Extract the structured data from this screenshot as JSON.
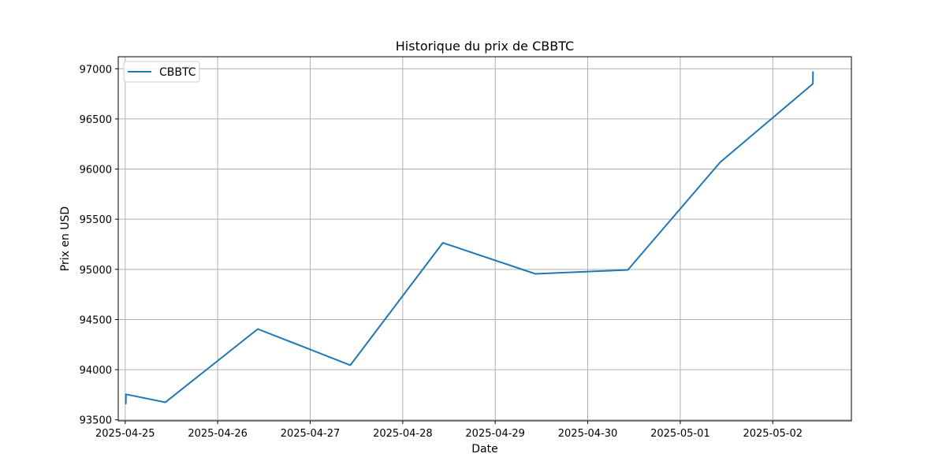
{
  "chart_data": {
    "type": "line",
    "title": "Historique du prix de CBBTC",
    "xlabel": "Date",
    "ylabel": "Prix en USD",
    "grid": true,
    "legend_position": "top-left",
    "xlim": [
      "2025-04-24T22:12",
      "2025-05-02T20:24"
    ],
    "ylim": [
      93490,
      97120
    ],
    "x_ticks": [
      "2025-04-25",
      "2025-04-26",
      "2025-04-27",
      "2025-04-28",
      "2025-04-29",
      "2025-04-30",
      "2025-05-01",
      "2025-05-02"
    ],
    "y_ticks": [
      93500,
      94000,
      94500,
      95000,
      95500,
      96000,
      96500,
      97000
    ],
    "series": [
      {
        "name": "CBBTC",
        "color": "#1f77b4",
        "points": [
          {
            "x": "2025-04-25T00:10",
            "y": 93660
          },
          {
            "x": "2025-04-25T00:12",
            "y": 93755
          },
          {
            "x": "2025-04-25T10:24",
            "y": 93675
          },
          {
            "x": "2025-04-26T10:24",
            "y": 94405
          },
          {
            "x": "2025-04-27T10:24",
            "y": 94045
          },
          {
            "x": "2025-04-28T10:24",
            "y": 95265
          },
          {
            "x": "2025-04-29T10:24",
            "y": 94955
          },
          {
            "x": "2025-04-30T10:24",
            "y": 94995
          },
          {
            "x": "2025-05-01T10:24",
            "y": 96070
          },
          {
            "x": "2025-05-02T10:24",
            "y": 96850
          },
          {
            "x": "2025-05-02T10:26",
            "y": 96970
          }
        ]
      }
    ]
  }
}
